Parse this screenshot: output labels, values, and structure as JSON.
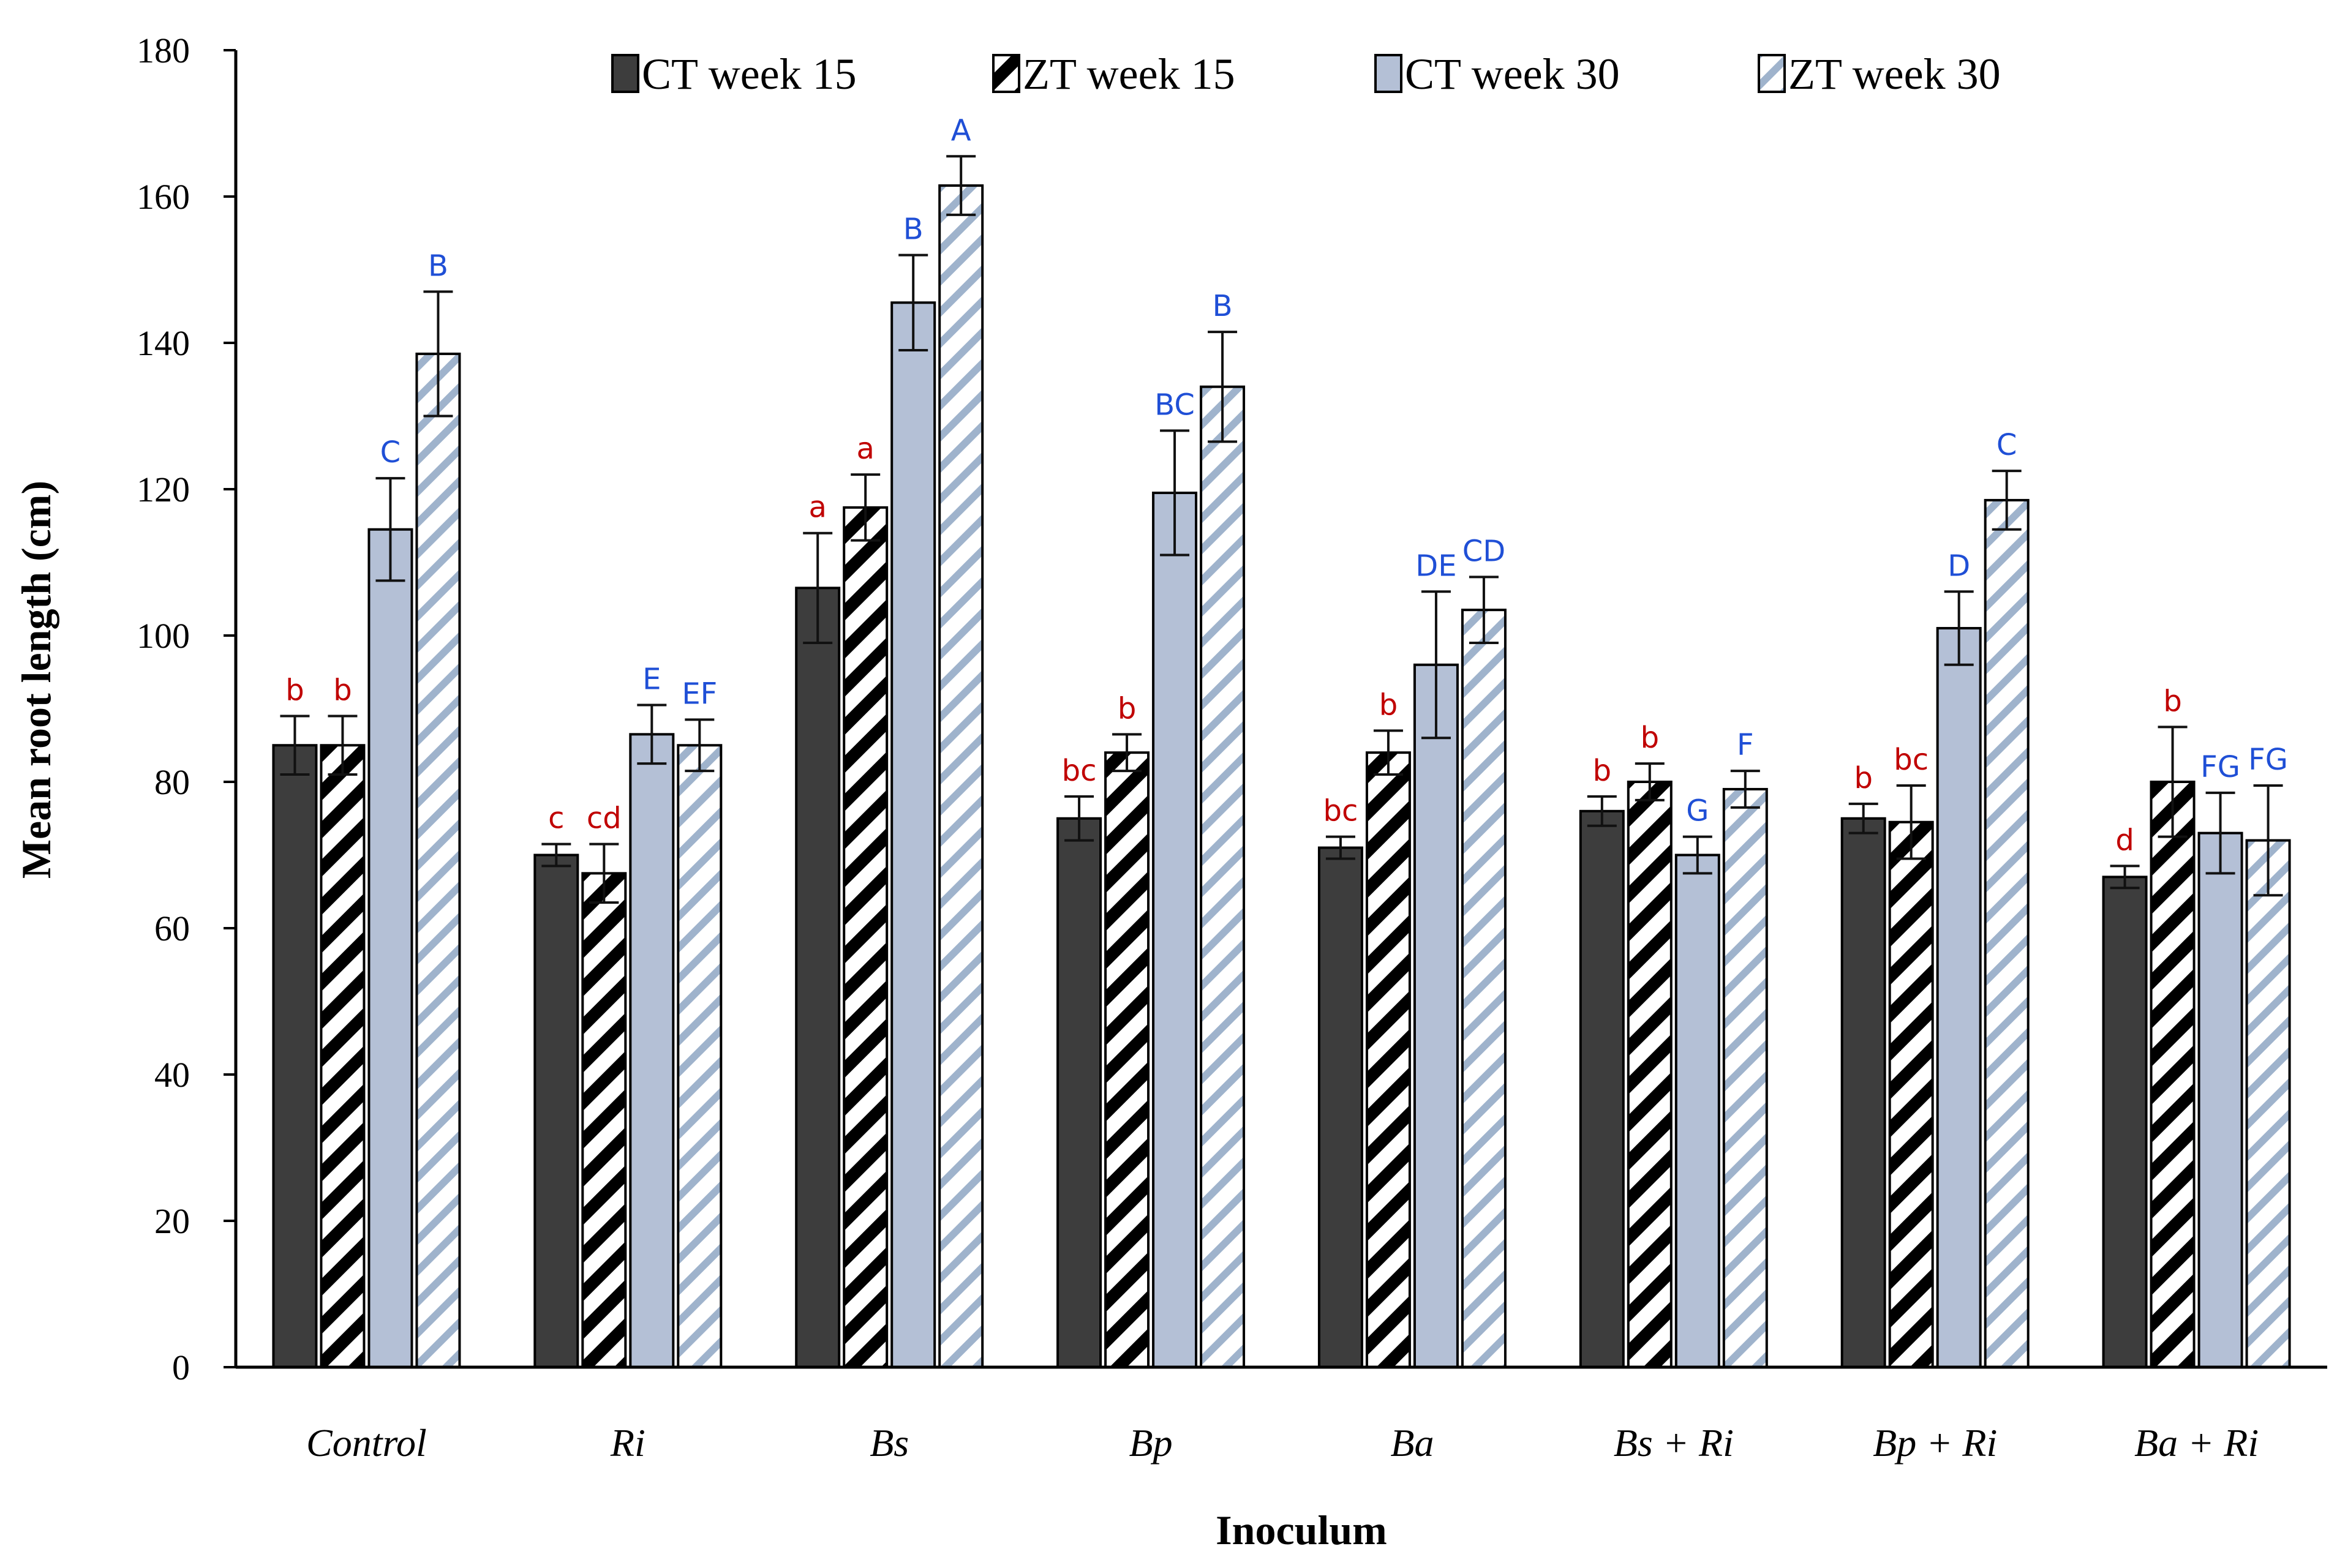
{
  "chart_data": {
    "type": "bar",
    "title": "",
    "xlabel": "Inoculum",
    "ylabel": "Mean root length (cm)",
    "ylim": [
      0,
      180
    ],
    "y_ticks": [
      "0",
      "20",
      "40",
      "60",
      "80",
      "100",
      "120",
      "140",
      "160",
      "180"
    ],
    "categories": [
      "Control",
      "Ri",
      "Bs",
      "Bp",
      "Ba",
      "Bs + Ri",
      "Bp + Ri",
      "Ba + Ri"
    ],
    "series": [
      {
        "name": "CT week 15",
        "fill": "#3d3d3d",
        "pattern": "solid",
        "values": [
          85,
          70,
          106.5,
          75,
          71,
          76,
          75,
          67
        ],
        "errors": [
          4,
          1.5,
          7.5,
          3,
          1.5,
          2,
          2,
          1.5
        ],
        "letters": [
          "b",
          "c",
          "a",
          "bc",
          "bc",
          "b",
          "b",
          "d"
        ],
        "letter_color": "#c00000"
      },
      {
        "name": "ZT week 15",
        "fill": "#000000",
        "pattern": "hatch-black",
        "values": [
          85,
          67.5,
          117.5,
          84,
          84,
          80,
          74.5,
          80
        ],
        "errors": [
          4,
          4,
          4.5,
          2.5,
          3,
          2.5,
          5,
          7.5
        ],
        "letters": [
          "b",
          "cd",
          "a",
          "b",
          "b",
          "b",
          "bc",
          "b"
        ],
        "letter_color": "#c00000"
      },
      {
        "name": "CT week 30",
        "fill": "#b4c0d6",
        "pattern": "solid",
        "values": [
          114.5,
          86.5,
          145.5,
          119.5,
          96,
          70,
          101,
          73
        ],
        "errors": [
          7,
          4,
          6.5,
          8.5,
          10,
          2.5,
          5,
          5.5
        ],
        "letters": [
          "C",
          "E",
          "B",
          "BC",
          "DE",
          "G",
          "D",
          "FG"
        ],
        "letter_color": "#1f4fd6"
      },
      {
        "name": "ZT week 30",
        "fill": "#9fb3cc",
        "pattern": "hatch-light",
        "values": [
          138.5,
          85,
          161.5,
          134,
          103.5,
          79,
          118.5,
          72
        ],
        "errors": [
          8.5,
          3.5,
          4,
          7.5,
          4.5,
          2.5,
          4,
          7.5
        ],
        "letters": [
          "B",
          "EF",
          "A",
          "B",
          "CD",
          "F",
          "C",
          "FG"
        ],
        "letter_color": "#1f4fd6"
      }
    ],
    "legend": "top-center",
    "grid": false
  }
}
